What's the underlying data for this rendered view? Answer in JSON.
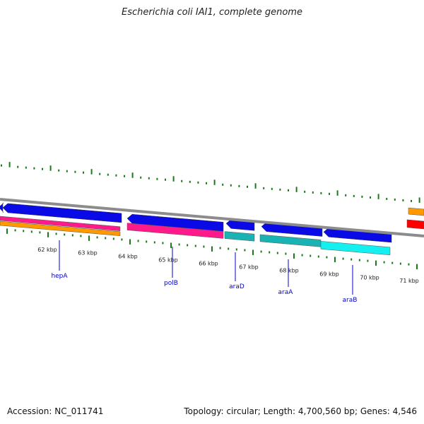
{
  "title": "Escherichia coli IAI1, complete genome",
  "footer": {
    "accession": "Accession: NC_011741",
    "summary": "Topology: circular; Length: 4,700,560 bp; Genes: 4,546"
  },
  "ruler_labels": [
    "62 kbp",
    "63 kbp",
    "64 kbp",
    "65 kbp",
    "66 kbp",
    "67 kbp",
    "68 kbp",
    "69 kbp",
    "70 kbp",
    "71 kbp"
  ],
  "gene_labels": [
    "hepA",
    "polB",
    "araD",
    "araA",
    "araB"
  ],
  "colors": {
    "backbone": "#8c8c8c",
    "tick": "#1a7a1a",
    "cds": "#0a0ae6",
    "magenta": "#ff1a8c",
    "orange": "#ff9900",
    "teal": "#19b3b3",
    "cyan": "#14f0f0",
    "red": "#ff0000",
    "gene_label": "#0000cc"
  }
}
